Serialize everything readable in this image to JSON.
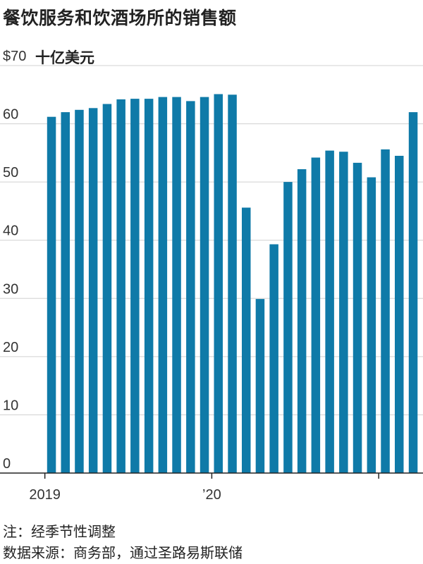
{
  "title": "餐饮服务和饮酒场所的销售额",
  "unit_label": "十亿美元",
  "footnote_1": "注：经季节性调整",
  "footnote_2": "数据来源：商务部，通过圣路易斯联储",
  "colors": {
    "bar": "#0f7aa8",
    "grid": "#d0d0d0",
    "axis": "#222222"
  },
  "chart_data": {
    "type": "bar",
    "title": "餐饮服务和饮酒场所的销售额",
    "ylabel": "十亿美元",
    "ylim": [
      0,
      70
    ],
    "y_tick_labels": [
      "0",
      "10",
      "20",
      "30",
      "40",
      "50",
      "60",
      "$70"
    ],
    "y_ticks": [
      0,
      10,
      20,
      30,
      40,
      50,
      60,
      70
    ],
    "x_tick_labels": [
      {
        "label": "2019",
        "category": "2019-01"
      },
      {
        "label": "’20",
        "category": "2020-01"
      },
      {
        "label": "",
        "category": "2021-01"
      }
    ],
    "categories": [
      "2019-01",
      "2019-02",
      "2019-03",
      "2019-04",
      "2019-05",
      "2019-06",
      "2019-07",
      "2019-08",
      "2019-09",
      "2019-10",
      "2019-11",
      "2019-12",
      "2020-01",
      "2020-02",
      "2020-03",
      "2020-04",
      "2020-05",
      "2020-06",
      "2020-07",
      "2020-08",
      "2020-09",
      "2020-10",
      "2020-11",
      "2020-12",
      "2021-01",
      "2021-02",
      "2021-03"
    ],
    "values": [
      61.2,
      62.0,
      62.4,
      62.7,
      63.4,
      64.2,
      64.3,
      64.3,
      64.6,
      64.6,
      63.9,
      64.6,
      65.1,
      65.0,
      45.6,
      29.9,
      39.3,
      50.0,
      52.2,
      54.2,
      55.4,
      55.2,
      53.3,
      50.8,
      55.6,
      54.5,
      62.0
    ],
    "grid": true,
    "legend": "none"
  }
}
